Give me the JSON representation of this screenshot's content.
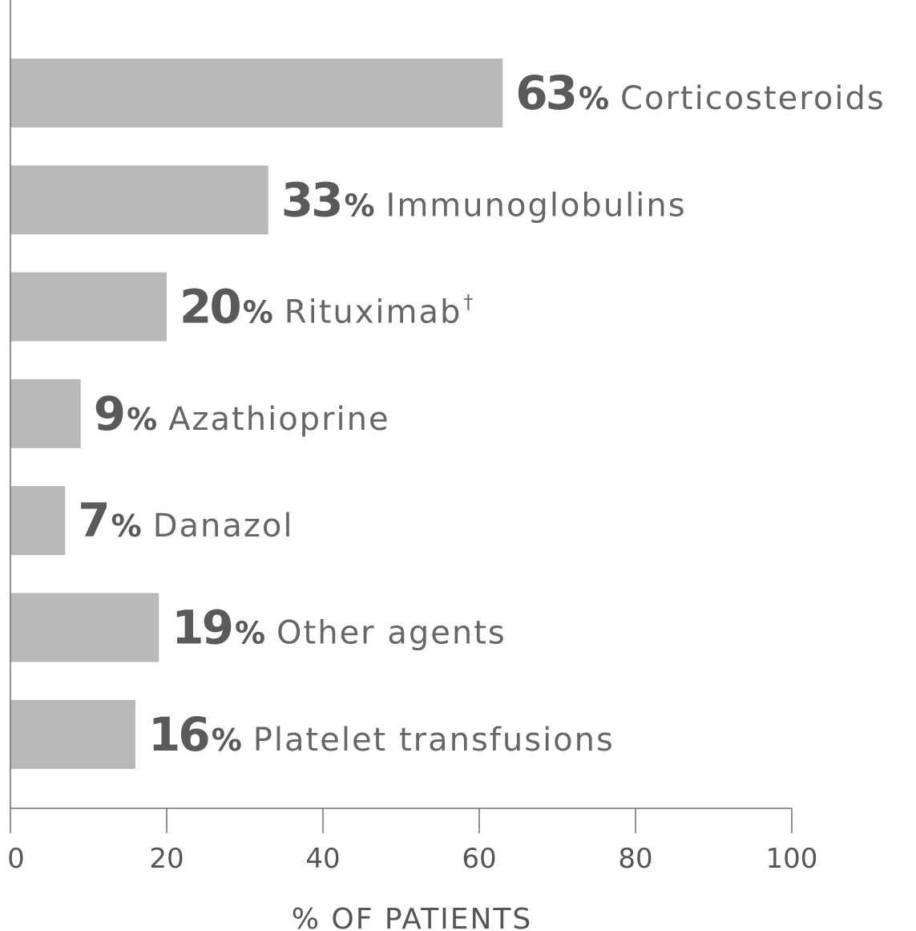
{
  "chart_data": {
    "type": "bar",
    "orientation": "horizontal",
    "categories": [
      "Corticosteroids",
      "Immunoglobulins",
      "Rituximab",
      "Azathioprine",
      "Danazol",
      "Other agents",
      "Platelet transfusions"
    ],
    "category_marks": [
      "",
      "",
      "†",
      "",
      "",
      "",
      ""
    ],
    "values": [
      63,
      33,
      20,
      9,
      7,
      19,
      16
    ],
    "value_suffix": "%",
    "xlabel": "% OF PATIENTS",
    "ylabel": "",
    "title": "",
    "xlim": [
      0,
      100
    ],
    "xticks": [
      0,
      20,
      40,
      60,
      80,
      100
    ],
    "grid": false,
    "legend": "none",
    "bar_color": "#b9b9b9",
    "text_color": "#5a5a5a"
  }
}
